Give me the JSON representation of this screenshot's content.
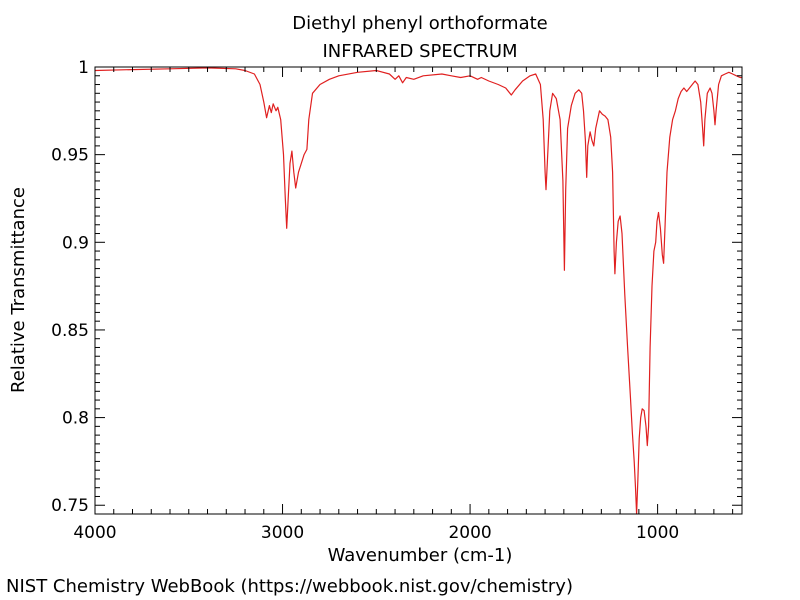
{
  "chart_data": {
    "type": "line",
    "title": "Diethyl phenyl orthoformate",
    "subtitle": "INFRARED SPECTRUM",
    "xlabel": "Wavenumber (cm-1)",
    "ylabel": "Relative Transmittance",
    "xlim": [
      4000,
      550
    ],
    "ylim": [
      0.745,
      1.0
    ],
    "x_inverted": true,
    "grid": false,
    "x_ticks": [
      {
        "value": 4000,
        "label": "4000"
      },
      {
        "value": 3000,
        "label": "3000"
      },
      {
        "value": 2000,
        "label": "2000"
      },
      {
        "value": 1000,
        "label": "1000"
      }
    ],
    "y_ticks": [
      {
        "value": 1.0,
        "label": "1"
      },
      {
        "value": 0.95,
        "label": "0.95"
      },
      {
        "value": 0.9,
        "label": "0.9"
      },
      {
        "value": 0.85,
        "label": "0.85"
      },
      {
        "value": 0.8,
        "label": "0.8"
      },
      {
        "value": 0.75,
        "label": "0.75"
      }
    ],
    "series": [
      {
        "color": "#e02020",
        "points": [
          [
            4000,
            0.998
          ],
          [
            3800,
            0.9985
          ],
          [
            3600,
            0.999
          ],
          [
            3400,
            0.9995
          ],
          [
            3250,
            0.999
          ],
          [
            3200,
            0.998
          ],
          [
            3150,
            0.996
          ],
          [
            3120,
            0.99
          ],
          [
            3100,
            0.98
          ],
          [
            3085,
            0.971
          ],
          [
            3070,
            0.978
          ],
          [
            3060,
            0.974
          ],
          [
            3050,
            0.979
          ],
          [
            3035,
            0.975
          ],
          [
            3025,
            0.977
          ],
          [
            3010,
            0.97
          ],
          [
            2995,
            0.95
          ],
          [
            2985,
            0.925
          ],
          [
            2978,
            0.908
          ],
          [
            2970,
            0.925
          ],
          [
            2960,
            0.945
          ],
          [
            2950,
            0.952
          ],
          [
            2940,
            0.94
          ],
          [
            2930,
            0.931
          ],
          [
            2915,
            0.94
          ],
          [
            2900,
            0.945
          ],
          [
            2885,
            0.95
          ],
          [
            2870,
            0.953
          ],
          [
            2860,
            0.97
          ],
          [
            2840,
            0.985
          ],
          [
            2800,
            0.99
          ],
          [
            2750,
            0.993
          ],
          [
            2700,
            0.995
          ],
          [
            2600,
            0.997
          ],
          [
            2500,
            0.998
          ],
          [
            2430,
            0.996
          ],
          [
            2400,
            0.993
          ],
          [
            2380,
            0.995
          ],
          [
            2360,
            0.991
          ],
          [
            2340,
            0.994
          ],
          [
            2300,
            0.993
          ],
          [
            2250,
            0.995
          ],
          [
            2150,
            0.996
          ],
          [
            2100,
            0.995
          ],
          [
            2050,
            0.994
          ],
          [
            2000,
            0.995
          ],
          [
            1960,
            0.993
          ],
          [
            1940,
            0.994
          ],
          [
            1900,
            0.992
          ],
          [
            1850,
            0.99
          ],
          [
            1810,
            0.988
          ],
          [
            1780,
            0.984
          ],
          [
            1760,
            0.987
          ],
          [
            1720,
            0.992
          ],
          [
            1680,
            0.995
          ],
          [
            1650,
            0.996
          ],
          [
            1625,
            0.99
          ],
          [
            1610,
            0.97
          ],
          [
            1600,
            0.94
          ],
          [
            1595,
            0.93
          ],
          [
            1588,
            0.945
          ],
          [
            1575,
            0.975
          ],
          [
            1560,
            0.985
          ],
          [
            1540,
            0.982
          ],
          [
            1520,
            0.97
          ],
          [
            1505,
            0.935
          ],
          [
            1497,
            0.884
          ],
          [
            1490,
            0.93
          ],
          [
            1480,
            0.965
          ],
          [
            1460,
            0.978
          ],
          [
            1440,
            0.985
          ],
          [
            1420,
            0.987
          ],
          [
            1405,
            0.985
          ],
          [
            1395,
            0.975
          ],
          [
            1385,
            0.958
          ],
          [
            1378,
            0.937
          ],
          [
            1372,
            0.955
          ],
          [
            1360,
            0.963
          ],
          [
            1350,
            0.958
          ],
          [
            1340,
            0.955
          ],
          [
            1330,
            0.965
          ],
          [
            1310,
            0.975
          ],
          [
            1295,
            0.973
          ],
          [
            1280,
            0.972
          ],
          [
            1265,
            0.97
          ],
          [
            1250,
            0.96
          ],
          [
            1240,
            0.94
          ],
          [
            1232,
            0.895
          ],
          [
            1228,
            0.882
          ],
          [
            1220,
            0.9
          ],
          [
            1210,
            0.912
          ],
          [
            1200,
            0.915
          ],
          [
            1190,
            0.905
          ],
          [
            1175,
            0.87
          ],
          [
            1160,
            0.84
          ],
          [
            1145,
            0.812
          ],
          [
            1135,
            0.792
          ],
          [
            1125,
            0.775
          ],
          [
            1118,
            0.76
          ],
          [
            1112,
            0.745
          ],
          [
            1105,
            0.765
          ],
          [
            1098,
            0.788
          ],
          [
            1090,
            0.8
          ],
          [
            1082,
            0.805
          ],
          [
            1072,
            0.804
          ],
          [
            1062,
            0.795
          ],
          [
            1055,
            0.784
          ],
          [
            1048,
            0.795
          ],
          [
            1040,
            0.84
          ],
          [
            1030,
            0.875
          ],
          [
            1020,
            0.895
          ],
          [
            1010,
            0.9
          ],
          [
            1003,
            0.912
          ],
          [
            995,
            0.917
          ],
          [
            985,
            0.908
          ],
          [
            975,
            0.893
          ],
          [
            968,
            0.888
          ],
          [
            960,
            0.91
          ],
          [
            950,
            0.94
          ],
          [
            935,
            0.96
          ],
          [
            920,
            0.97
          ],
          [
            905,
            0.975
          ],
          [
            890,
            0.982
          ],
          [
            875,
            0.986
          ],
          [
            860,
            0.988
          ],
          [
            845,
            0.986
          ],
          [
            830,
            0.988
          ],
          [
            815,
            0.99
          ],
          [
            800,
            0.992
          ],
          [
            785,
            0.99
          ],
          [
            770,
            0.98
          ],
          [
            760,
            0.965
          ],
          [
            754,
            0.955
          ],
          [
            748,
            0.97
          ],
          [
            735,
            0.985
          ],
          [
            720,
            0.988
          ],
          [
            710,
            0.985
          ],
          [
            700,
            0.975
          ],
          [
            694,
            0.967
          ],
          [
            688,
            0.975
          ],
          [
            675,
            0.99
          ],
          [
            660,
            0.995
          ],
          [
            640,
            0.996
          ],
          [
            620,
            0.997
          ],
          [
            600,
            0.996
          ],
          [
            580,
            0.995
          ],
          [
            560,
            0.994
          ],
          [
            550,
            0.994
          ]
        ]
      }
    ]
  },
  "footer": "NIST Chemistry WebBook (https://webbook.nist.gov/chemistry)"
}
